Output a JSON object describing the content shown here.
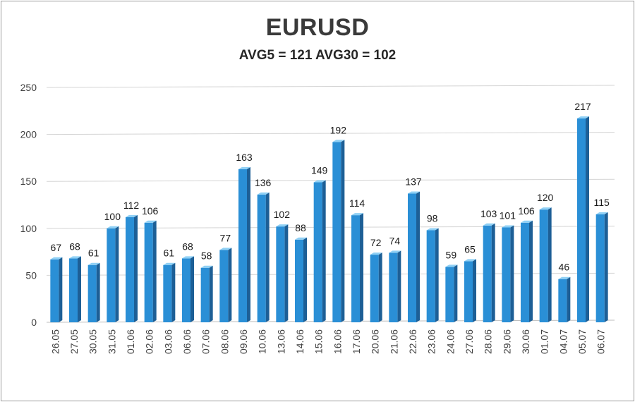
{
  "chart_data": {
    "type": "bar",
    "title": "EURUSD",
    "subtitle": "AVG5 = 121 AVG30 = 102",
    "categories": [
      "26.05",
      "27.05",
      "30.05",
      "31.05",
      "01.06",
      "02.06",
      "03.06",
      "06.06",
      "07.06",
      "08.06",
      "09.06",
      "10.06",
      "13.06",
      "14.06",
      "15.06",
      "16.06",
      "17.06",
      "20.06",
      "21.06",
      "22.06",
      "23.06",
      "24.06",
      "27.06",
      "28.06",
      "29.06",
      "30.06",
      "01.07",
      "04.07",
      "05.07",
      "06.07"
    ],
    "values": [
      67,
      68,
      61,
      100,
      112,
      106,
      61,
      68,
      58,
      77,
      163,
      136,
      102,
      88,
      149,
      192,
      114,
      72,
      74,
      137,
      98,
      59,
      65,
      103,
      101,
      106,
      120,
      46,
      217,
      115
    ],
    "ylim": [
      0,
      250
    ],
    "yticks": [
      0,
      50,
      100,
      150,
      200,
      250
    ],
    "grid": true,
    "legend": "none",
    "colors": {
      "bar_front": "#2a8fd6",
      "bar_top": "#8fd0f5",
      "bar_side": "#1d5f96",
      "grid": "#d4d4d4",
      "axis": "#bdbdbd"
    }
  }
}
